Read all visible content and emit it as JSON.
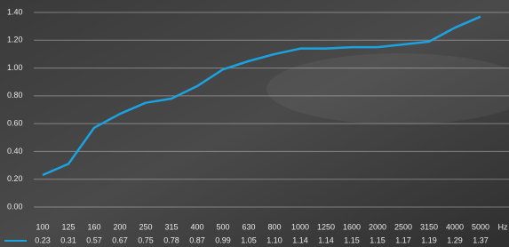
{
  "chart_data": {
    "type": "line",
    "categories": [
      "100",
      "125",
      "160",
      "200",
      "250",
      "315",
      "400",
      "500",
      "630",
      "800",
      "1000",
      "1250",
      "1600",
      "2000",
      "2500",
      "3150",
      "4000",
      "5000"
    ],
    "xlabel": "Hz",
    "values": [
      0.23,
      0.31,
      0.57,
      0.67,
      0.75,
      0.78,
      0.87,
      0.99,
      1.05,
      1.1,
      1.14,
      1.14,
      1.15,
      1.15,
      1.17,
      1.19,
      1.29,
      1.37
    ],
    "value_labels": [
      "0.23",
      "0.31",
      "0.57",
      "0.67",
      "0.75",
      "0.78",
      "0.87",
      "0.99",
      "1.05",
      "1.10",
      "1.14",
      "1.14",
      "1.15",
      "1.15",
      "1.17",
      "1.19",
      "1.29",
      "1.37"
    ],
    "color": "#1aa3e0",
    "ylim": [
      0,
      1.4
    ],
    "yticks": [
      {
        "value": 0,
        "label": "0.00"
      },
      {
        "value": 0.2,
        "label": "0.20"
      },
      {
        "value": 0.4,
        "label": "0.40"
      },
      {
        "value": 0.6,
        "label": "0.60"
      },
      {
        "value": 0.8,
        "label": "0.80"
      },
      {
        "value": 1,
        "label": "1.00"
      },
      {
        "value": 1.2,
        "label": "1.20"
      },
      {
        "value": 1.4,
        "label": "1.40"
      }
    ],
    "grid": true
  }
}
